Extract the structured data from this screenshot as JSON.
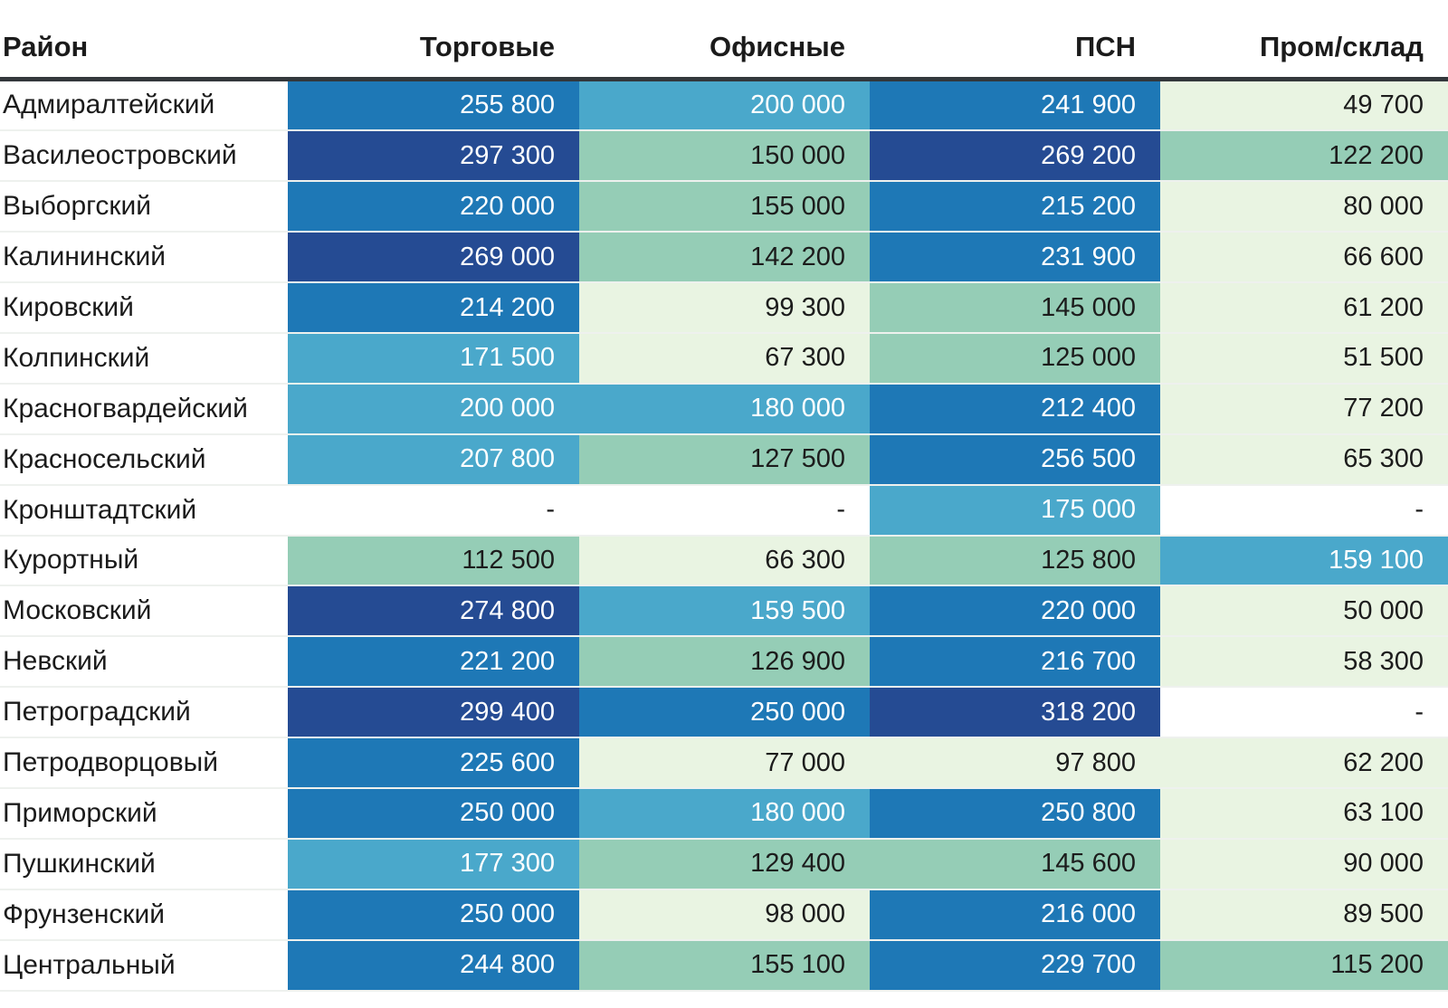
{
  "chart_data": {
    "type": "heatmap",
    "title": "",
    "columns": [
      "Район",
      "Торговые",
      "Офисные",
      "ПСН",
      "Пром/склад"
    ],
    "rows": [
      {
        "district": "Адмиралтейский",
        "values": [
          255800,
          200000,
          241900,
          49700
        ]
      },
      {
        "district": "Василеостровский",
        "values": [
          297300,
          150000,
          269200,
          122200
        ]
      },
      {
        "district": "Выборгский",
        "values": [
          220000,
          155000,
          215200,
          80000
        ]
      },
      {
        "district": "Калининский",
        "values": [
          269000,
          142200,
          231900,
          66600
        ]
      },
      {
        "district": "Кировский",
        "values": [
          214200,
          99300,
          145000,
          61200
        ]
      },
      {
        "district": "Колпинский",
        "values": [
          171500,
          67300,
          125000,
          51500
        ]
      },
      {
        "district": "Красногвардейский",
        "values": [
          200000,
          180000,
          212400,
          77200
        ]
      },
      {
        "district": "Красносельский",
        "values": [
          207800,
          127500,
          256500,
          65300
        ]
      },
      {
        "district": "Кронштадтский",
        "values": [
          null,
          null,
          175000,
          null
        ]
      },
      {
        "district": "Курортный",
        "values": [
          112500,
          66300,
          125800,
          159100
        ]
      },
      {
        "district": "Московский",
        "values": [
          274800,
          159500,
          220000,
          50000
        ]
      },
      {
        "district": "Невский",
        "values": [
          221200,
          126900,
          216700,
          58300
        ]
      },
      {
        "district": "Петроградский",
        "values": [
          299400,
          250000,
          318200,
          null
        ]
      },
      {
        "district": "Петродворцовый",
        "values": [
          225600,
          77000,
          97800,
          62200
        ]
      },
      {
        "district": "Приморский",
        "values": [
          250000,
          180000,
          250800,
          63100
        ]
      },
      {
        "district": "Пушкинский",
        "values": [
          177300,
          129400,
          145600,
          90000
        ]
      },
      {
        "district": "Фрунзенский",
        "values": [
          250000,
          98000,
          216000,
          89500
        ]
      },
      {
        "district": "Центральный",
        "values": [
          244800,
          155100,
          229700,
          115200
        ]
      }
    ],
    "empty_placeholder": "-",
    "value_range": [
      49700,
      318200
    ],
    "number_group_separator": " ",
    "heat_bins": [
      {
        "max": 105000,
        "bg": "#e9f4e2",
        "fg": "#1c1c1c"
      },
      {
        "max": 157000,
        "bg": "#95cdb6",
        "fg": "#1c1c1c"
      },
      {
        "max": 210000,
        "bg": "#4aa8cb",
        "fg": "#ffffff"
      },
      {
        "max": 262000,
        "bg": "#1e78b6",
        "fg": "#ffffff"
      },
      {
        "max": 999999999,
        "bg": "#254b93",
        "fg": "#ffffff"
      }
    ],
    "empty_cell_bg": "#ffffff",
    "empty_cell_fg": "#1c1c1c",
    "header_rule_color": "#33383c",
    "row_divider_color": "#eef1ee"
  }
}
